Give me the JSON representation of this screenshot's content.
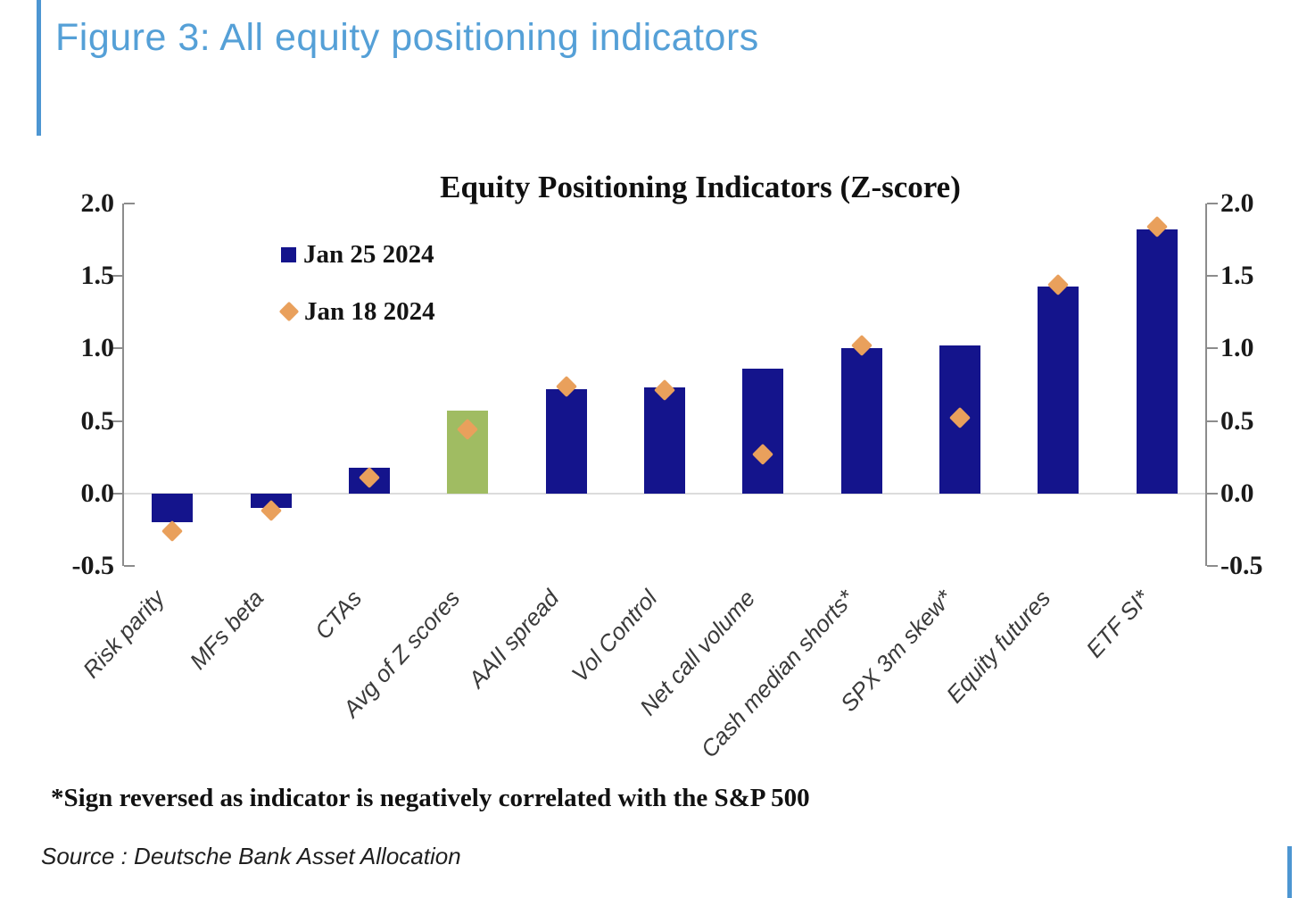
{
  "header": {
    "title": "Figure 3: All equity positioning indicators"
  },
  "chart_data": {
    "type": "bar",
    "title": "Equity Positioning Indicators (Z-score)",
    "categories": [
      "Risk parity",
      "MFs beta",
      "CTAs",
      "Avg of Z scores",
      "AAII spread",
      "Vol Control",
      "Net call volume",
      "Cash median shorts*",
      "SPX 3m skew*",
      "Equity futures",
      "ETF SI*"
    ],
    "series": [
      {
        "name": "Jan 25 2024",
        "marker": "bar",
        "color": "#14148C",
        "highlight_index": 3,
        "highlight_color": "#A0BC62",
        "values": [
          -0.2,
          -0.1,
          0.18,
          0.57,
          0.72,
          0.73,
          0.86,
          1.0,
          1.02,
          1.43,
          1.82
        ]
      },
      {
        "name": "Jan 18 2024",
        "marker": "diamond",
        "color": "#E9A05C",
        "values": [
          -0.26,
          -0.12,
          0.11,
          0.44,
          0.74,
          0.71,
          0.27,
          1.02,
          0.52,
          1.44,
          1.84
        ]
      }
    ],
    "ylim": [
      -0.5,
      2.0
    ],
    "yticks": [
      "2.0",
      "1.5",
      "1.0",
      "0.5",
      "0.0",
      "-0.5"
    ],
    "dual_axis": true,
    "grid": "zero line only",
    "legend_position": "top-left inside plot"
  },
  "footnote": "*Sign reversed as indicator is negatively correlated with the S&P 500",
  "source": "Source : Deutsche Bank Asset Allocation",
  "colors": {
    "header_blue": "#55A0D7",
    "accent_bar_blue": "#4D96D2",
    "bar_navy": "#14148C",
    "bar_green": "#A0BC62",
    "diamond_orange": "#E9A05C",
    "axis_gray": "#8C8C8C",
    "zero_line_gray": "#DCDCDC"
  }
}
